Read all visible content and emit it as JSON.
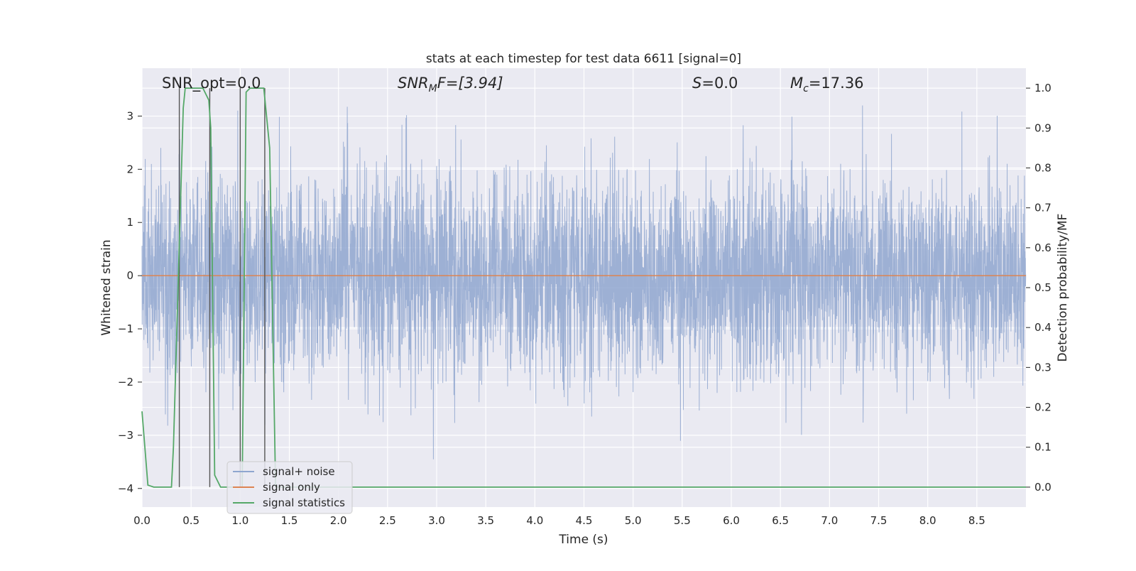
{
  "chart_data": {
    "type": "line",
    "title": "stats at each timestep for test data 6611 [signal=0]",
    "xlabel": "Time (s)",
    "ylabel_left": "Whitened strain",
    "ylabel_right": "Detection probability/MF",
    "xlim": [
      0.0,
      9.0
    ],
    "ylim_left": [
      -4.35,
      3.9
    ],
    "ylim_right": [
      -0.05,
      1.05
    ],
    "x_ticks": [
      0.0,
      0.5,
      1.0,
      1.5,
      2.0,
      2.5,
      3.0,
      3.5,
      4.0,
      4.5,
      5.0,
      5.5,
      6.0,
      6.5,
      7.0,
      7.5,
      8.0,
      8.5
    ],
    "x_tick_labels": [
      "0.0",
      "0.5",
      "1.0",
      "1.5",
      "2.0",
      "2.5",
      "3.0",
      "3.5",
      "4.0",
      "4.5",
      "5.0",
      "5.5",
      "6.0",
      "6.5",
      "7.0",
      "7.5",
      "8.0",
      "8.5"
    ],
    "y_left_ticks": [
      -4,
      -3,
      -2,
      -1,
      0,
      1,
      2,
      3
    ],
    "y_left_tick_labels": [
      "−4",
      "−3",
      "−2",
      "−1",
      "0",
      "1",
      "2",
      "3"
    ],
    "y_right_ticks": [
      0.0,
      0.1,
      0.2,
      0.3,
      0.4,
      0.5,
      0.6,
      0.7,
      0.8,
      0.9,
      1.0
    ],
    "y_right_tick_labels": [
      "0.0",
      "0.1",
      "0.2",
      "0.3",
      "0.4",
      "0.5",
      "0.6",
      "0.7",
      "0.8",
      "0.9",
      "1.0"
    ],
    "grid": true,
    "legend_position": "lower-left",
    "annotations": {
      "snr_opt": "SNR_opt=0.0",
      "snr_mf_main": "SNR",
      "snr_mf_sub": "M",
      "snr_mf_rest": "F=[3.94]",
      "s_main": "S",
      "s_rest": "=0.0",
      "mc_main": "M",
      "mc_sub": "c",
      "mc_rest": "=17.36"
    },
    "series": [
      {
        "name": "signal+ noise",
        "color": "#8fa6cf",
        "axis": "left",
        "kind": "noise",
        "sample_rate_hz": 512,
        "typical_range": [
          -1.7,
          1.6
        ],
        "peak_max": 3.55,
        "peak_min": -4.0
      },
      {
        "name": "signal only",
        "color": "#dd8452",
        "axis": "left",
        "x": [
          0.0,
          9.0
        ],
        "values": [
          0.0,
          0.0
        ]
      },
      {
        "name": "signal statistics",
        "color": "#55a868",
        "axis": "right",
        "x": [
          0.0,
          0.06,
          0.12,
          0.3,
          0.32,
          0.42,
          0.44,
          0.6,
          0.62,
          0.68,
          0.7,
          0.74,
          0.8,
          0.92,
          0.96,
          1.02,
          1.06,
          1.1,
          1.16,
          1.24,
          1.3,
          1.36,
          1.4,
          9.0
        ],
        "values": [
          0.19,
          0.005,
          0.0,
          0.0,
          0.1,
          0.95,
          1.0,
          1.0,
          1.0,
          0.97,
          0.9,
          0.03,
          0.0,
          0.0,
          0.0,
          0.0,
          0.99,
          1.0,
          1.0,
          1.0,
          0.85,
          0.0,
          0.0,
          0.0
        ]
      }
    ],
    "vertical_markers": {
      "color": "#555555",
      "x": [
        0.38,
        0.69,
        1.0,
        1.25
      ]
    }
  }
}
